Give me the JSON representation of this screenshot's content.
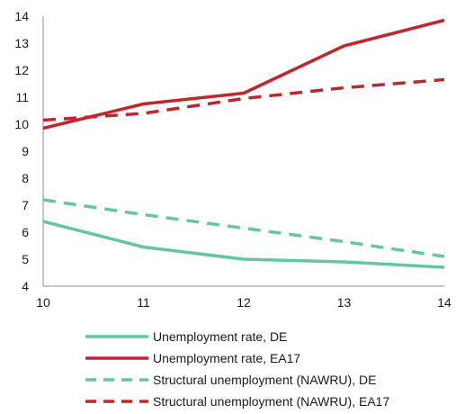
{
  "chart_data": {
    "type": "line",
    "x": [
      10,
      11,
      12,
      13,
      14
    ],
    "xlim": [
      10,
      14
    ],
    "ylim": [
      4,
      14
    ],
    "yticks": [
      4,
      5,
      6,
      7,
      8,
      9,
      10,
      11,
      12,
      13,
      14
    ],
    "xticks": [
      10,
      11,
      12,
      13,
      14
    ],
    "grid": false,
    "legend_position": "bottom",
    "series": [
      {
        "name": "Unemployment rate, DE",
        "values": [
          6.4,
          5.45,
          5.0,
          4.9,
          4.7
        ],
        "color": "#66c6a4",
        "style": "solid"
      },
      {
        "name": "Unemployment rate, EA17",
        "values": [
          9.85,
          10.75,
          11.15,
          12.9,
          13.85
        ],
        "color": "#c0262c",
        "style": "solid"
      },
      {
        "name": "Structural unemployment (NAWRU), DE",
        "values": [
          7.2,
          6.65,
          6.15,
          5.65,
          5.1
        ],
        "color": "#66c6a4",
        "style": "dashed"
      },
      {
        "name": "Structural unemployment (NAWRU), EA17",
        "values": [
          10.15,
          10.4,
          10.95,
          11.35,
          11.65
        ],
        "color": "#c0262c",
        "style": "dashed"
      }
    ]
  }
}
